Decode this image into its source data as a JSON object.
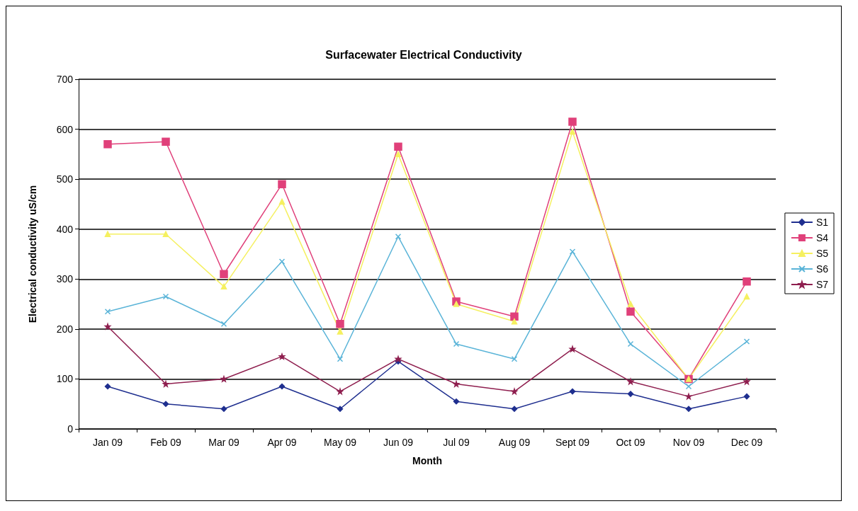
{
  "chart_data": {
    "type": "line",
    "title": "Surfacewater Electrical Conductivity",
    "xlabel": "Month",
    "ylabel": "Electrical conductivity uS/cm",
    "categories": [
      "Jan 09",
      "Feb 09",
      "Mar 09",
      "Apr 09",
      "May 09",
      "Jun 09",
      "Jul 09",
      "Aug 09",
      "Sept 09",
      "Oct 09",
      "Nov 09",
      "Dec 09"
    ],
    "series": [
      {
        "name": "S1",
        "color": "#1f2f8f",
        "marker": "diamond",
        "values": [
          85,
          50,
          40,
          85,
          40,
          135,
          55,
          40,
          75,
          70,
          40,
          65
        ]
      },
      {
        "name": "S4",
        "color": "#e0407a",
        "marker": "square",
        "values": [
          570,
          575,
          310,
          490,
          210,
          565,
          255,
          225,
          615,
          235,
          100,
          295
        ]
      },
      {
        "name": "S5",
        "color": "#f5f060",
        "marker": "triangle",
        "values": [
          390,
          390,
          285,
          455,
          195,
          550,
          250,
          215,
          595,
          250,
          100,
          265
        ]
      },
      {
        "name": "S6",
        "color": "#5ab4d8",
        "marker": "cross",
        "values": [
          235,
          265,
          210,
          335,
          140,
          385,
          170,
          140,
          355,
          170,
          85,
          175
        ]
      },
      {
        "name": "S7",
        "color": "#8f1f4f",
        "marker": "star",
        "values": [
          205,
          90,
          100,
          145,
          75,
          140,
          90,
          75,
          160,
          95,
          65,
          95
        ]
      }
    ],
    "ylim": [
      0,
      700
    ],
    "yticks": [
      0,
      100,
      200,
      300,
      400,
      500,
      600,
      700
    ],
    "grid": "y",
    "legend": "right"
  }
}
